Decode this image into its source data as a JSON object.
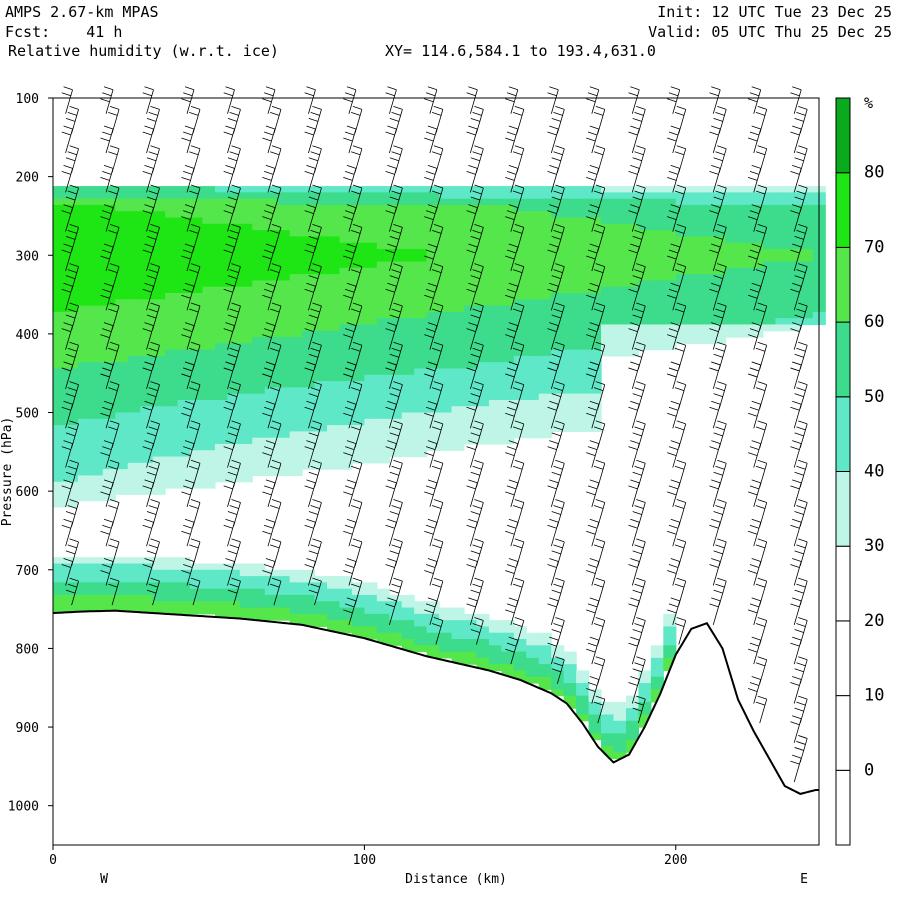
{
  "header": {
    "model": "AMPS 2.67-km MPAS",
    "fcst": "Fcst:    41 h",
    "field": "Relative humidity (w.r.t. ice)",
    "xy": "XY= 114.6,584.1 to 193.4,631.0",
    "init": "Init: 12 UTC Tue 23 Dec 25",
    "valid": "Valid: 05 UTC Thu 25 Dec 25"
  },
  "chart_data": {
    "type": "heatmap",
    "title": "Relative humidity (w.r.t. ice)",
    "xlabel": "Distance (km)",
    "ylabel": "Pressure (hPa)",
    "xlim": [
      0,
      246
    ],
    "ylim": [
      1050,
      100
    ],
    "x_ticks": [
      0,
      100,
      200
    ],
    "y_ticks": [
      100,
      200,
      300,
      400,
      500,
      600,
      700,
      800,
      900,
      1000
    ],
    "x_end_labels": [
      "W",
      "E"
    ],
    "colorbar": {
      "unit": "%",
      "levels": [
        0,
        10,
        20,
        30,
        40,
        50,
        60,
        70,
        80
      ],
      "colors": [
        "#ffffff",
        "#ffffff",
        "#ffffff",
        "#bff5e6",
        "#5fe8c7",
        "#3cdc8c",
        "#55e64b",
        "#1ee614",
        "#0aaa1e"
      ]
    },
    "terrain_profile": {
      "x_km": [
        0,
        10,
        20,
        40,
        60,
        80,
        100,
        120,
        140,
        150,
        160,
        165,
        170,
        175,
        180,
        185,
        190,
        195,
        200,
        205,
        210,
        215,
        220,
        225,
        230,
        235,
        240,
        245
      ],
      "pressure_hPa": [
        755,
        753,
        752,
        757,
        762,
        770,
        787,
        810,
        828,
        840,
        857,
        870,
        895,
        925,
        945,
        935,
        900,
        858,
        808,
        775,
        768,
        800,
        865,
        905,
        940,
        975,
        985,
        980
      ]
    },
    "moist_layers": [
      {
        "name": "upper-layer",
        "x_km": [
          0,
          245
        ],
        "p_top_hPa": 215,
        "p_bottom_hPa": 620,
        "max_rh_percent": 80
      },
      {
        "name": "near-surface-layer",
        "x_km": [
          0,
          200
        ],
        "p_top_hPa": 715,
        "p_bottom_hPa": 945,
        "max_rh_percent": 70
      }
    ],
    "wind_barbs": {
      "x_km": [
        5,
        18,
        31,
        44,
        57,
        70,
        83,
        96,
        109,
        122,
        135,
        148,
        161,
        174,
        187,
        200,
        213,
        226,
        239
      ],
      "pressure_levels_hPa": [
        120,
        145,
        170,
        195,
        220,
        245,
        270,
        295,
        320,
        345,
        370,
        395,
        420,
        445,
        470,
        495,
        520,
        545,
        570,
        595,
        620,
        645,
        670,
        695,
        720,
        745,
        770,
        795,
        820,
        845,
        870,
        895,
        920,
        945,
        970
      ]
    }
  }
}
